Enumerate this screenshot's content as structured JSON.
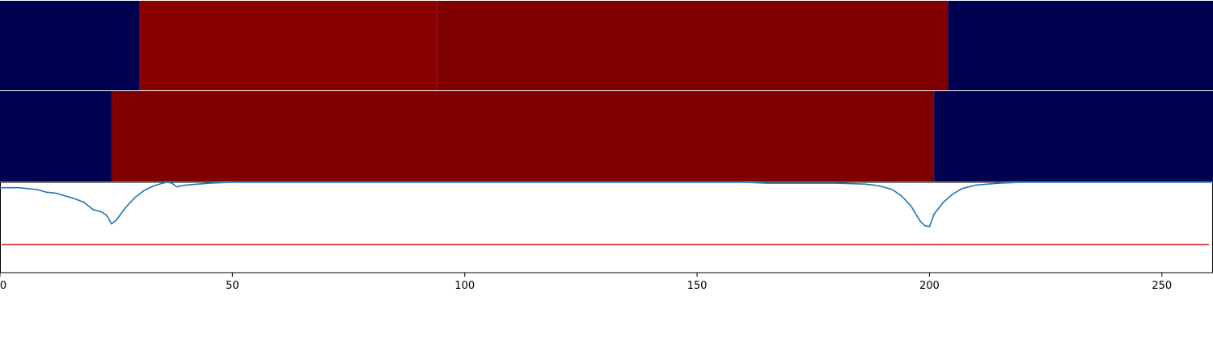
{
  "chart_data": [
    {
      "type": "heatmap",
      "segments": [
        {
          "start": 0,
          "end": 30,
          "color": "#000050"
        },
        {
          "start": 30,
          "end": 94,
          "color": "#880000"
        },
        {
          "start": 94,
          "end": 204,
          "color": "#7f0000"
        },
        {
          "start": 204,
          "end": 261,
          "color": "#000050"
        }
      ],
      "xlim": [
        0,
        261
      ]
    },
    {
      "type": "heatmap",
      "segments": [
        {
          "start": 0,
          "end": 24,
          "color": "#000050"
        },
        {
          "start": 24,
          "end": 201,
          "color": "#7f0000"
        },
        {
          "start": 201,
          "end": 261,
          "color": "#000050"
        }
      ],
      "xlim": [
        0,
        261
      ]
    },
    {
      "type": "line",
      "xlim": [
        0,
        261
      ],
      "ylim": [
        0,
        1
      ],
      "xticks": [
        0,
        50,
        100,
        150,
        200,
        250
      ],
      "tick_labels": [
        "0",
        "50",
        "100",
        "150",
        "200",
        "250"
      ],
      "threshold": 0.31,
      "threshold_color": "#d62728",
      "line_color": "#1f77b4",
      "series": [
        {
          "x": [
            0,
            2,
            4,
            6,
            8,
            10,
            12,
            14,
            16,
            18,
            20,
            22,
            23,
            24,
            25,
            27,
            29,
            31,
            33,
            35,
            36,
            37,
            38,
            40,
            45,
            50,
            60,
            80,
            100,
            120,
            140,
            160,
            165,
            170,
            180,
            186,
            188,
            190,
            192,
            194,
            196,
            198,
            199,
            200,
            201,
            203,
            205,
            207,
            210,
            215,
            220,
            230,
            250,
            261
          ],
          "y": [
            0.94,
            0.94,
            0.94,
            0.93,
            0.92,
            0.89,
            0.88,
            0.85,
            0.82,
            0.78,
            0.7,
            0.67,
            0.63,
            0.54,
            0.58,
            0.72,
            0.83,
            0.91,
            0.96,
            0.99,
            1.0,
            0.99,
            0.95,
            0.97,
            0.99,
            1.0,
            1.0,
            1.0,
            1.0,
            1.0,
            1.0,
            1.0,
            0.99,
            0.99,
            0.99,
            0.98,
            0.97,
            0.95,
            0.92,
            0.85,
            0.74,
            0.57,
            0.52,
            0.51,
            0.65,
            0.78,
            0.87,
            0.93,
            0.97,
            0.99,
            1.0,
            1.0,
            1.0,
            1.0
          ]
        }
      ]
    }
  ]
}
